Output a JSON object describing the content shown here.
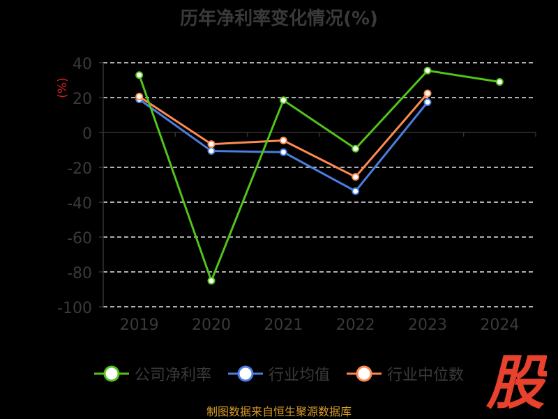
{
  "title": "历年净利率变化情况(%)",
  "source_text": "制图数据来自恒生聚源数据库",
  "stamp_text": "股",
  "colors": {
    "company": "#52c41a",
    "industry_avg": "#4a7ee0",
    "industry_median": "#ff8a50",
    "stamp": "#e8412e",
    "source": "#d79b25"
  },
  "chart_data": {
    "type": "line",
    "title": "历年净利率变化情况(%)",
    "ylabel": "(%)",
    "xlabel": "",
    "categories": [
      "2019",
      "2020",
      "2021",
      "2022",
      "2023",
      "2024"
    ],
    "ylim": [
      -100,
      40
    ],
    "yticks": [
      40,
      20,
      0,
      -20,
      -40,
      -60,
      -80,
      -100
    ],
    "grid": true,
    "legend_position": "bottom",
    "series": [
      {
        "name": "公司净利率",
        "key": "company",
        "values": [
          32.9,
          -85.1,
          18.5,
          -9.3,
          35.5,
          29.0
        ]
      },
      {
        "name": "行业均值",
        "key": "industry_avg",
        "values": [
          19.0,
          -10.6,
          -11.3,
          -33.7,
          17.4,
          null
        ]
      },
      {
        "name": "行业中位数",
        "key": "industry_median",
        "values": [
          20.6,
          -6.7,
          -4.6,
          -25.5,
          22.4,
          null
        ]
      }
    ]
  }
}
